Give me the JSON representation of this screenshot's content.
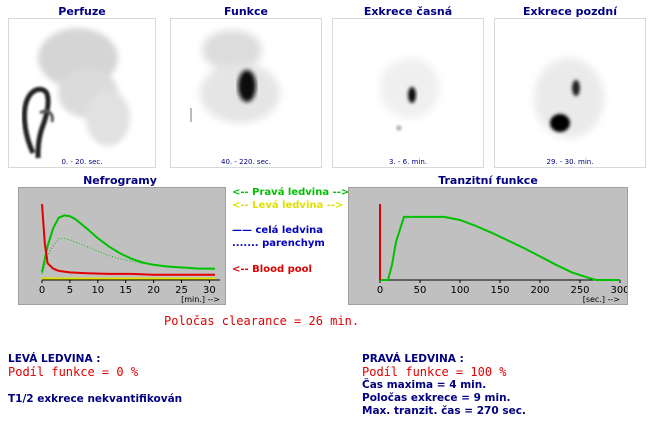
{
  "scans": [
    {
      "title": "Perfuze",
      "time": "0. - 20. sec."
    },
    {
      "title": "Funkce",
      "time": "40. - 220. sec."
    },
    {
      "title": "Exkrece časná",
      "time": "3. - 6. min."
    },
    {
      "title": "Exkrece pozdní",
      "time": "29. - 30. min."
    }
  ],
  "nefrogramy": {
    "title": "Nefrogramy",
    "x_ticks": [
      "0",
      "5",
      "10",
      "15",
      "20",
      "25",
      "30"
    ],
    "x_unit": "[min.] -->"
  },
  "tranzit": {
    "title": "Tranzitní funkce",
    "x_ticks": [
      "0",
      "50",
      "100",
      "150",
      "200",
      "250",
      "300"
    ],
    "x_unit": "[sec.] -->"
  },
  "legend": {
    "right_kidney": "<-- Pravá ledvina -->",
    "left_kidney": "<-- Levá  ledvina -->",
    "whole_kidney": "—— celá ledvina",
    "parenchyma": "....... parenchym",
    "blood_pool": "<-- Blood pool",
    "colors": {
      "right": "#00c000",
      "left": "#e0e000",
      "whole": "#0000c0",
      "blood": "#e00000"
    }
  },
  "clearance": "Poločas clearance =   26 min.",
  "left_report": {
    "heading": "LEVÁ  LEDVINA  :",
    "function_share": "Podíl funkce  = 0 %",
    "note": "T1/2 exkrece nekvantifikován"
  },
  "right_report": {
    "heading": "PRAVÁ  LEDVINA  :",
    "function_share": "Podíl funkce  = 100 %",
    "time_max": "Čas   maxima    = 4 min.",
    "excretion_half": "Poločas exkrece = 9 min.",
    "max_transit": "Max. tranzit. čas = 270 sec."
  },
  "chart_data": [
    {
      "type": "line",
      "title": "Nefrogramy",
      "xlabel": "[min.] -->",
      "xlim": [
        0,
        31
      ],
      "ylim": [
        0,
        100
      ],
      "series": [
        {
          "name": "Pravá ledvina",
          "style": "solid",
          "color": "#00c000",
          "x": [
            0,
            1,
            2,
            3,
            4,
            5,
            6,
            8,
            10,
            12,
            14,
            16,
            18,
            20,
            22,
            24,
            26,
            28,
            30,
            31
          ],
          "y": [
            10,
            45,
            68,
            82,
            85,
            84,
            80,
            68,
            55,
            44,
            35,
            28,
            23,
            20,
            18,
            17,
            16,
            15,
            15,
            15
          ]
        },
        {
          "name": "Pravá ledvina parenchym",
          "style": "dotted",
          "color": "#00c000",
          "x": [
            0,
            1,
            2,
            3,
            4,
            6,
            8,
            10,
            12,
            15,
            18,
            21,
            24,
            27,
            30,
            31
          ],
          "y": [
            8,
            32,
            45,
            54,
            55,
            50,
            44,
            38,
            32,
            26,
            22,
            19,
            17,
            16,
            15,
            15
          ]
        },
        {
          "name": "Levá ledvina",
          "style": "solid",
          "color": "#e0e000",
          "x": [
            0,
            31
          ],
          "y": [
            2,
            2
          ]
        },
        {
          "name": "Blood pool",
          "style": "solid",
          "color": "#e00000",
          "x": [
            0,
            0.5,
            1,
            2,
            3,
            5,
            8,
            12,
            16,
            20,
            25,
            31
          ],
          "y": [
            100,
            48,
            22,
            15,
            12,
            10,
            9,
            8,
            8,
            7,
            7,
            7
          ]
        }
      ]
    },
    {
      "type": "line",
      "title": "Tranzitní funkce",
      "xlabel": "[sec.] -->",
      "xlim": [
        0,
        300
      ],
      "ylim": [
        0,
        100
      ],
      "series": [
        {
          "name": "Pravá ledvina",
          "style": "solid",
          "color": "#00c000",
          "x": [
            0,
            10,
            15,
            20,
            30,
            40,
            50,
            60,
            80,
            100,
            120,
            140,
            160,
            180,
            200,
            220,
            240,
            260,
            270,
            300
          ],
          "y": [
            0,
            0,
            20,
            50,
            83,
            83,
            83,
            83,
            83,
            79,
            71,
            62,
            52,
            42,
            31,
            20,
            10,
            3,
            0,
            0
          ]
        },
        {
          "name": "Blood pool",
          "style": "solid",
          "color": "#e00000",
          "x": [
            0,
            0
          ],
          "y": [
            0,
            100
          ]
        }
      ]
    }
  ]
}
